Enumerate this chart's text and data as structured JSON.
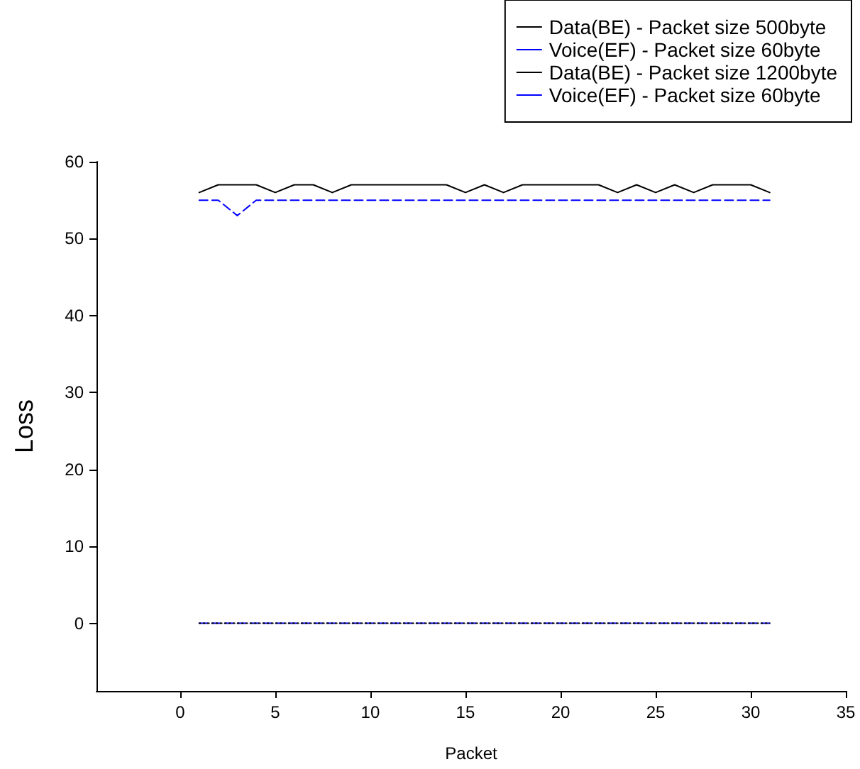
{
  "chart_data": {
    "type": "line",
    "xlabel": "Packet",
    "ylabel": "Loss",
    "x": [
      1,
      2,
      3,
      4,
      5,
      6,
      7,
      8,
      9,
      10,
      11,
      12,
      13,
      14,
      15,
      16,
      17,
      18,
      19,
      20,
      21,
      22,
      23,
      24,
      25,
      26,
      27,
      28,
      29,
      30,
      31
    ],
    "series": [
      {
        "name": "Data(BE) - Packet size 500byte",
        "color": "#000000",
        "line_style": "solid",
        "values": [
          56,
          57,
          57,
          57,
          56,
          57,
          57,
          56,
          57,
          57,
          57,
          57,
          57,
          57,
          56,
          57,
          56,
          57,
          57,
          57,
          57,
          57,
          56,
          57,
          56,
          57,
          56,
          57,
          57,
          57,
          56
        ]
      },
      {
        "name": "Voice(EF) - Packet size 60byte",
        "color": "#0000ff",
        "line_style": "dashed",
        "values": [
          55,
          55,
          53,
          55,
          55,
          55,
          55,
          55,
          55,
          55,
          55,
          55,
          55,
          55,
          55,
          55,
          55,
          55,
          55,
          55,
          55,
          55,
          55,
          55,
          55,
          55,
          55,
          55,
          55,
          55,
          55
        ]
      },
      {
        "name": "Data(BE) - Packet size 1200byte",
        "color": "#000000",
        "line_style": "dotted",
        "values": [
          0,
          0,
          0,
          0,
          0,
          0,
          0,
          0,
          0,
          0,
          0,
          0,
          0,
          0,
          0,
          0,
          0,
          0,
          0,
          0,
          0,
          0,
          0,
          0,
          0,
          0,
          0,
          0,
          0,
          0,
          0
        ]
      },
      {
        "name": "Voice(EF) - Packet size 60byte",
        "color": "#0000ff",
        "line_style": "dashed",
        "values": [
          0,
          0,
          0,
          0,
          0,
          0,
          0,
          0,
          0,
          0,
          0,
          0,
          0,
          0,
          0,
          0,
          0,
          0,
          0,
          0,
          0,
          0,
          0,
          0,
          0,
          0,
          0,
          0,
          0,
          0,
          0
        ]
      }
    ],
    "xlim": [
      -4.4,
      35
    ],
    "xticks": [
      0,
      5,
      10,
      15,
      20,
      25,
      30,
      35
    ],
    "ylim": [
      -8.8,
      60
    ],
    "yticks": [
      0,
      10,
      20,
      30,
      40,
      50,
      60
    ],
    "grid": false,
    "legend": "top right",
    "marker": "none"
  }
}
